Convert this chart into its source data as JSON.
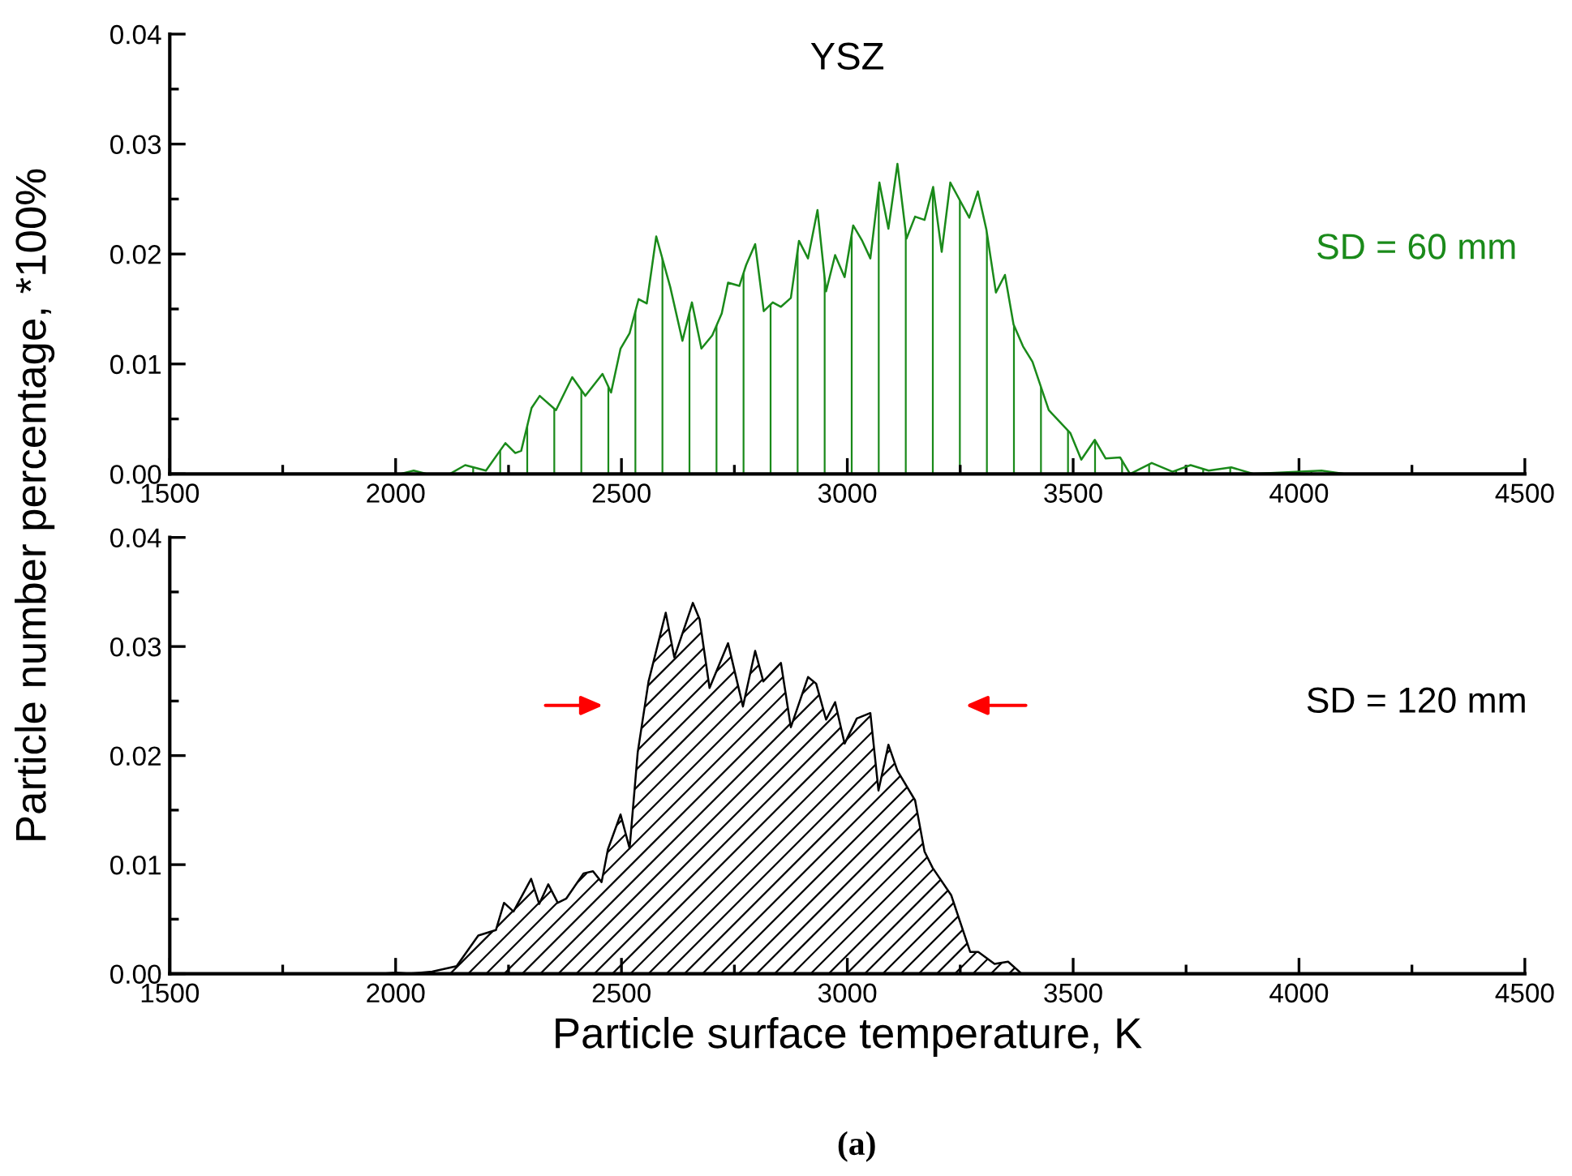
{
  "chart_data": [
    {
      "type": "area",
      "title": "YSZ",
      "ylabel": "Particle number percentage, *100%",
      "annotations": [
        "SD = 60 mm"
      ],
      "xlim": [
        1500,
        4500
      ],
      "xticks": [
        1500,
        2000,
        2500,
        3000,
        3500,
        4000,
        4500
      ],
      "ylim": [
        0,
        0.04
      ],
      "yticks": [
        {
          "value": 0,
          "label": "0.00"
        },
        {
          "value": 0.01,
          "label": "0.01"
        },
        {
          "value": 0.02,
          "label": "0.02"
        },
        {
          "value": 0.03,
          "label": "0.03"
        },
        {
          "value": 0.04,
          "label": "0.04"
        }
      ],
      "grid": false,
      "series": [
        {
          "color": "#1a8a1a",
          "x": [
            1500,
            2010,
            2040,
            2070,
            2120,
            2154,
            2200,
            2243,
            2265,
            2278,
            2301,
            2319,
            2355,
            2391,
            2420,
            2458,
            2477,
            2498,
            2518,
            2538,
            2556,
            2577,
            2608,
            2635,
            2656,
            2677,
            2701,
            2722,
            2736,
            2761,
            2776,
            2796,
            2815,
            2835,
            2853,
            2875,
            2893,
            2913,
            2934,
            2953,
            2973,
            2994,
            3013,
            3033,
            3051,
            3071,
            3091,
            3111,
            3131,
            3150,
            3171,
            3190,
            3209,
            3228,
            3249,
            3270,
            3289,
            3308,
            3329,
            3349,
            3368,
            3389,
            3410,
            3446,
            3494,
            3518,
            3548,
            3572,
            3604,
            3626,
            3674,
            3720,
            3760,
            3800,
            3850,
            3900,
            4050,
            4100,
            4500
          ],
          "values": [
            0,
            0,
            0.0003,
            0,
            0,
            0.0008,
            0.0003,
            0.0028,
            0.0019,
            0.0021,
            0.006,
            0.0071,
            0.0058,
            0.0088,
            0.0071,
            0.0091,
            0.0074,
            0.0114,
            0.0128,
            0.0159,
            0.0155,
            0.0216,
            0.017,
            0.0121,
            0.0156,
            0.0114,
            0.0126,
            0.0146,
            0.0174,
            0.0171,
            0.019,
            0.0209,
            0.0148,
            0.0156,
            0.0152,
            0.016,
            0.0212,
            0.0196,
            0.024,
            0.0166,
            0.0199,
            0.0179,
            0.0226,
            0.0212,
            0.0196,
            0.0265,
            0.0223,
            0.0282,
            0.0214,
            0.0234,
            0.0231,
            0.0261,
            0.0202,
            0.0265,
            0.0249,
            0.0233,
            0.0257,
            0.0222,
            0.0165,
            0.0181,
            0.0136,
            0.0116,
            0.0102,
            0.0058,
            0.0037,
            0.0013,
            0.0031,
            0.0014,
            0.0015,
            0,
            0.001,
            0.0002,
            0.0008,
            0.0003,
            0.0006,
            0,
            0.0003,
            0,
            0
          ]
        }
      ]
    },
    {
      "type": "area",
      "xlabel": "Particle surface temperature, K",
      "annotations": [
        "SD = 120 mm",
        "(a)"
      ],
      "xlim": [
        1500,
        4500
      ],
      "xticks": [
        1500,
        2000,
        2500,
        3000,
        3500,
        4000,
        4500
      ],
      "ylim": [
        0,
        0.04
      ],
      "yticks": [
        {
          "value": 0,
          "label": "0.00"
        },
        {
          "value": 0.01,
          "label": "0.01"
        },
        {
          "value": 0.02,
          "label": "0.02"
        },
        {
          "value": 0.03,
          "label": "0.03"
        },
        {
          "value": 0.04,
          "label": "0.04"
        }
      ],
      "grid": false,
      "series": [
        {
          "color": "#000000",
          "x": [
            1500,
            1973,
            2000,
            2030,
            2081,
            2135,
            2183,
            2222,
            2240,
            2261,
            2300,
            2318,
            2338,
            2359,
            2378,
            2416,
            2437,
            2456,
            2470,
            2498,
            2518,
            2536,
            2560,
            2598,
            2617,
            2658,
            2673,
            2695,
            2736,
            2769,
            2796,
            2814,
            2853,
            2875,
            2913,
            2931,
            2953,
            2973,
            2994,
            3021,
            3051,
            3069,
            3091,
            3111,
            3150,
            3171,
            3189,
            3230,
            3272,
            3290,
            3326,
            3356,
            3386,
            3468,
            4500
          ],
          "values": [
            0,
            0,
            0.0001,
            0,
            0.0002,
            0.0007,
            0.0035,
            0.004,
            0.0065,
            0.0057,
            0.0087,
            0.0064,
            0.0082,
            0.0065,
            0.0069,
            0.0092,
            0.0094,
            0.0084,
            0.0114,
            0.0146,
            0.0115,
            0.0203,
            0.0268,
            0.0331,
            0.029,
            0.034,
            0.0325,
            0.0262,
            0.0303,
            0.0245,
            0.0296,
            0.0268,
            0.0285,
            0.0226,
            0.0272,
            0.0266,
            0.0233,
            0.0249,
            0.0211,
            0.0234,
            0.0239,
            0.0168,
            0.021,
            0.0186,
            0.0159,
            0.0112,
            0.0097,
            0.0072,
            0.002,
            0.002,
            0.0009,
            0.0011,
            0,
            0,
            0
          ]
        }
      ]
    }
  ]
}
